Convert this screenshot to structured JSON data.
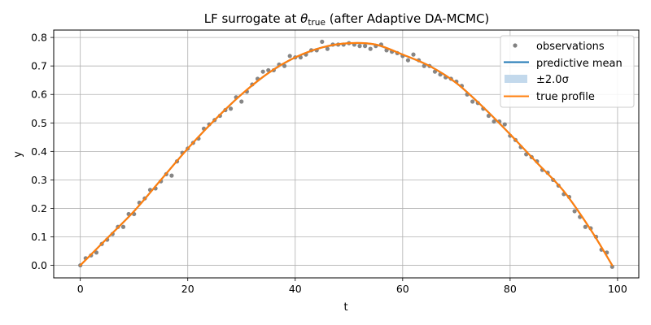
{
  "chart_data": {
    "type": "line",
    "title": "LF surrogate at θ_true (after Adaptive DA-MCMC)",
    "title_parts": {
      "prefix": "LF surrogate at ",
      "theta": "θ",
      "subscript": "true",
      "suffix": " (after Adaptive DA-MCMC)"
    },
    "xlabel": "t",
    "ylabel": "y",
    "xlim": [
      -4.95,
      103.95
    ],
    "ylim": [
      -0.044,
      0.826
    ],
    "xticks": [
      0,
      20,
      40,
      60,
      80,
      100
    ],
    "yticks": [
      0.0,
      0.1,
      0.2,
      0.3,
      0.4,
      0.5,
      0.6,
      0.7,
      0.8
    ],
    "xtick_labels": [
      "0",
      "20",
      "40",
      "60",
      "80",
      "100"
    ],
    "ytick_labels": [
      "0.0",
      "0.1",
      "0.2",
      "0.3",
      "0.4",
      "0.5",
      "0.6",
      "0.7",
      "0.8"
    ],
    "grid": true,
    "legend": {
      "position": "upper right",
      "entries": [
        {
          "label": "observations",
          "kind": "marker",
          "color": "#808080"
        },
        {
          "label": "predictive mean",
          "kind": "line",
          "color": "#1f77b4"
        },
        {
          "label": "±2.0σ",
          "kind": "patch",
          "color": "#c3d9ec"
        },
        {
          "label": "true profile",
          "kind": "line",
          "color": "#ff7f0e"
        }
      ]
    },
    "series": [
      {
        "name": "observations",
        "style": "scatter",
        "color": "#808080",
        "x": [
          0,
          1,
          2,
          3,
          4,
          5,
          6,
          7,
          8,
          9,
          10,
          11,
          12,
          13,
          14,
          15,
          16,
          17,
          18,
          19,
          20,
          21,
          22,
          23,
          24,
          25,
          26,
          27,
          28,
          29,
          30,
          31,
          32,
          33,
          34,
          35,
          36,
          37,
          38,
          39,
          40,
          41,
          42,
          43,
          44,
          45,
          46,
          47,
          48,
          49,
          50,
          51,
          52,
          53,
          54,
          55,
          56,
          57,
          58,
          59,
          60,
          61,
          62,
          63,
          64,
          65,
          66,
          67,
          68,
          69,
          70,
          71,
          72,
          73,
          74,
          75,
          76,
          77,
          78,
          79,
          80,
          81,
          82,
          83,
          84,
          85,
          86,
          87,
          88,
          89,
          90,
          91,
          92,
          93,
          94,
          95,
          96,
          97,
          98,
          99
        ],
        "y": [
          0.0,
          0.025,
          0.035,
          0.045,
          0.075,
          0.09,
          0.11,
          0.135,
          0.135,
          0.18,
          0.18,
          0.22,
          0.235,
          0.265,
          0.27,
          0.295,
          0.32,
          0.315,
          0.365,
          0.395,
          0.41,
          0.43,
          0.445,
          0.48,
          0.495,
          0.51,
          0.525,
          0.545,
          0.55,
          0.59,
          0.575,
          0.61,
          0.635,
          0.655,
          0.68,
          0.685,
          0.685,
          0.705,
          0.7,
          0.735,
          0.73,
          0.73,
          0.74,
          0.755,
          0.755,
          0.785,
          0.76,
          0.775,
          0.775,
          0.775,
          0.78,
          0.775,
          0.77,
          0.77,
          0.76,
          0.77,
          0.775,
          0.755,
          0.75,
          0.745,
          0.735,
          0.72,
          0.74,
          0.72,
          0.7,
          0.7,
          0.68,
          0.67,
          0.66,
          0.655,
          0.645,
          0.63,
          0.6,
          0.575,
          0.57,
          0.55,
          0.525,
          0.505,
          0.505,
          0.495,
          0.455,
          0.44,
          0.415,
          0.39,
          0.38,
          0.365,
          0.335,
          0.325,
          0.3,
          0.28,
          0.25,
          0.24,
          0.19,
          0.17,
          0.135,
          0.13,
          0.1,
          0.055,
          0.045,
          -0.005
        ]
      },
      {
        "name": "predictive mean",
        "style": "line",
        "color": "#1f77b4",
        "x": [
          0,
          5,
          10,
          15,
          20,
          25,
          30,
          35,
          40,
          45,
          50,
          55,
          60,
          65,
          70,
          75,
          80,
          85,
          90,
          95,
          99
        ],
        "y": [
          0.0,
          0.095,
          0.19,
          0.3,
          0.41,
          0.51,
          0.6,
          0.675,
          0.73,
          0.765,
          0.78,
          0.775,
          0.74,
          0.7,
          0.64,
          0.555,
          0.46,
          0.36,
          0.26,
          0.125,
          0.0
        ]
      },
      {
        "name": "±2.0σ",
        "style": "band",
        "color": "#c3d9ec",
        "half_width": 0.003
      },
      {
        "name": "true profile",
        "style": "line",
        "color": "#ff7f0e",
        "x": [
          0,
          5,
          10,
          15,
          20,
          25,
          30,
          35,
          40,
          45,
          50,
          55,
          60,
          65,
          70,
          75,
          80,
          85,
          90,
          95,
          99
        ],
        "y": [
          0.0,
          0.095,
          0.19,
          0.3,
          0.41,
          0.51,
          0.6,
          0.675,
          0.73,
          0.765,
          0.78,
          0.775,
          0.74,
          0.7,
          0.64,
          0.555,
          0.46,
          0.36,
          0.26,
          0.125,
          0.0
        ]
      }
    ]
  }
}
